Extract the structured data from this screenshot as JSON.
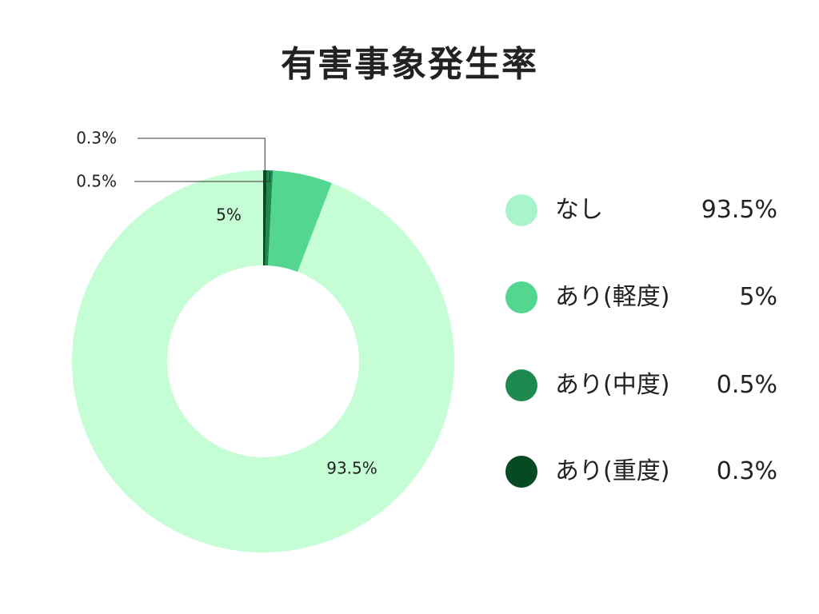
{
  "chart_data": {
    "type": "pie",
    "title": "有害事象発生率",
    "donut": true,
    "legend_position": "right",
    "slices": [
      {
        "label": "なし",
        "value": 93.5,
        "value_label": "93.5%",
        "color": "#c5fdd5"
      },
      {
        "label": "あり(軽度)",
        "value": 5,
        "value_label": "5%",
        "color": "#52d690"
      },
      {
        "label": "あり(中度)",
        "value": 0.5,
        "value_label": "0.5%",
        "color": "#1e8a50"
      },
      {
        "label": "あり(重度)",
        "value": 0.3,
        "value_label": "0.3%",
        "color": "#064a22"
      }
    ],
    "legend_values": [
      "93.5%",
      "5%",
      "0.5%",
      "0.3%"
    ]
  }
}
